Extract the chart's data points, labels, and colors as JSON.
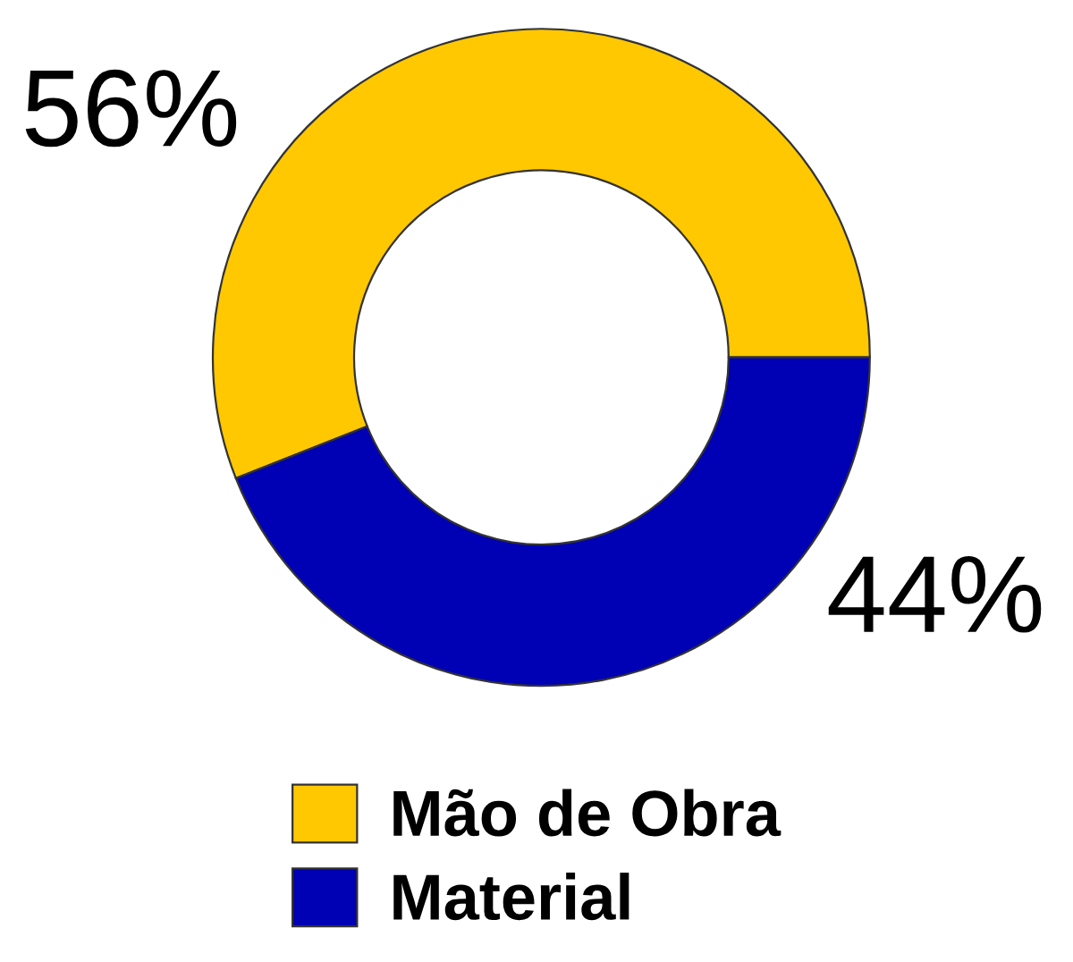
{
  "chart_data": {
    "type": "donut",
    "categories": [
      "Mão de Obra",
      "Material"
    ],
    "values": [
      56,
      44
    ],
    "colors": [
      "#ffc800",
      "#0000b4"
    ],
    "value_labels": [
      "56%",
      "44%"
    ],
    "legend": "bottom"
  }
}
